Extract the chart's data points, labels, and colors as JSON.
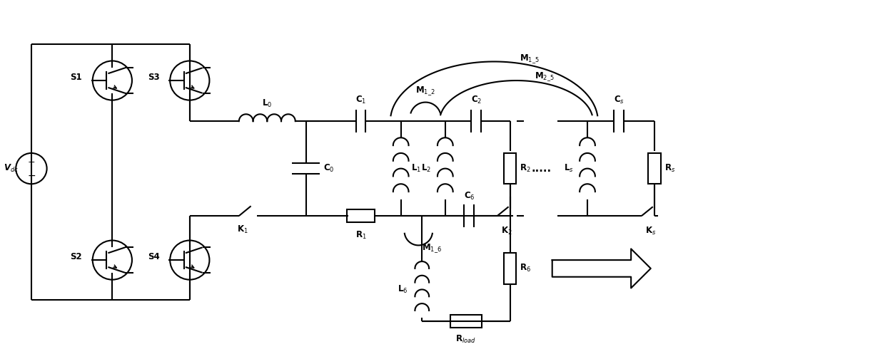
{
  "bg_color": "#ffffff",
  "line_color": "#000000",
  "lw": 1.5,
  "fig_width": 12.4,
  "fig_height": 4.9,
  "labels": {
    "Vdc": "V$_{dc}$",
    "S1": "S1",
    "S2": "S2",
    "S3": "S3",
    "S4": "S4",
    "L0": "L$_0$",
    "C0": "C$_0$",
    "C1": "C$_1$",
    "K1": "K$_1$",
    "R1": "R$_1$",
    "M12": "M$_{1\\_2}$",
    "M16": "M$_{1\\_6}$",
    "L1": "L$_1$",
    "L2": "L$_2$",
    "C2": "C$_2$",
    "R2": "R$_2$",
    "K2": "K$_2$",
    "M15": "M$_{1\\_5}$",
    "M25": "M$_{2\\_5}$",
    "dots": ".....",
    "L5": "L$_s$",
    "C5": "C$_s$",
    "R5": "R$_s$",
    "K5": "K$_s$",
    "L6": "L$_6$",
    "C6": "C$_6$",
    "R6": "R$_6$",
    "Rload": "R$_{load}$"
  }
}
